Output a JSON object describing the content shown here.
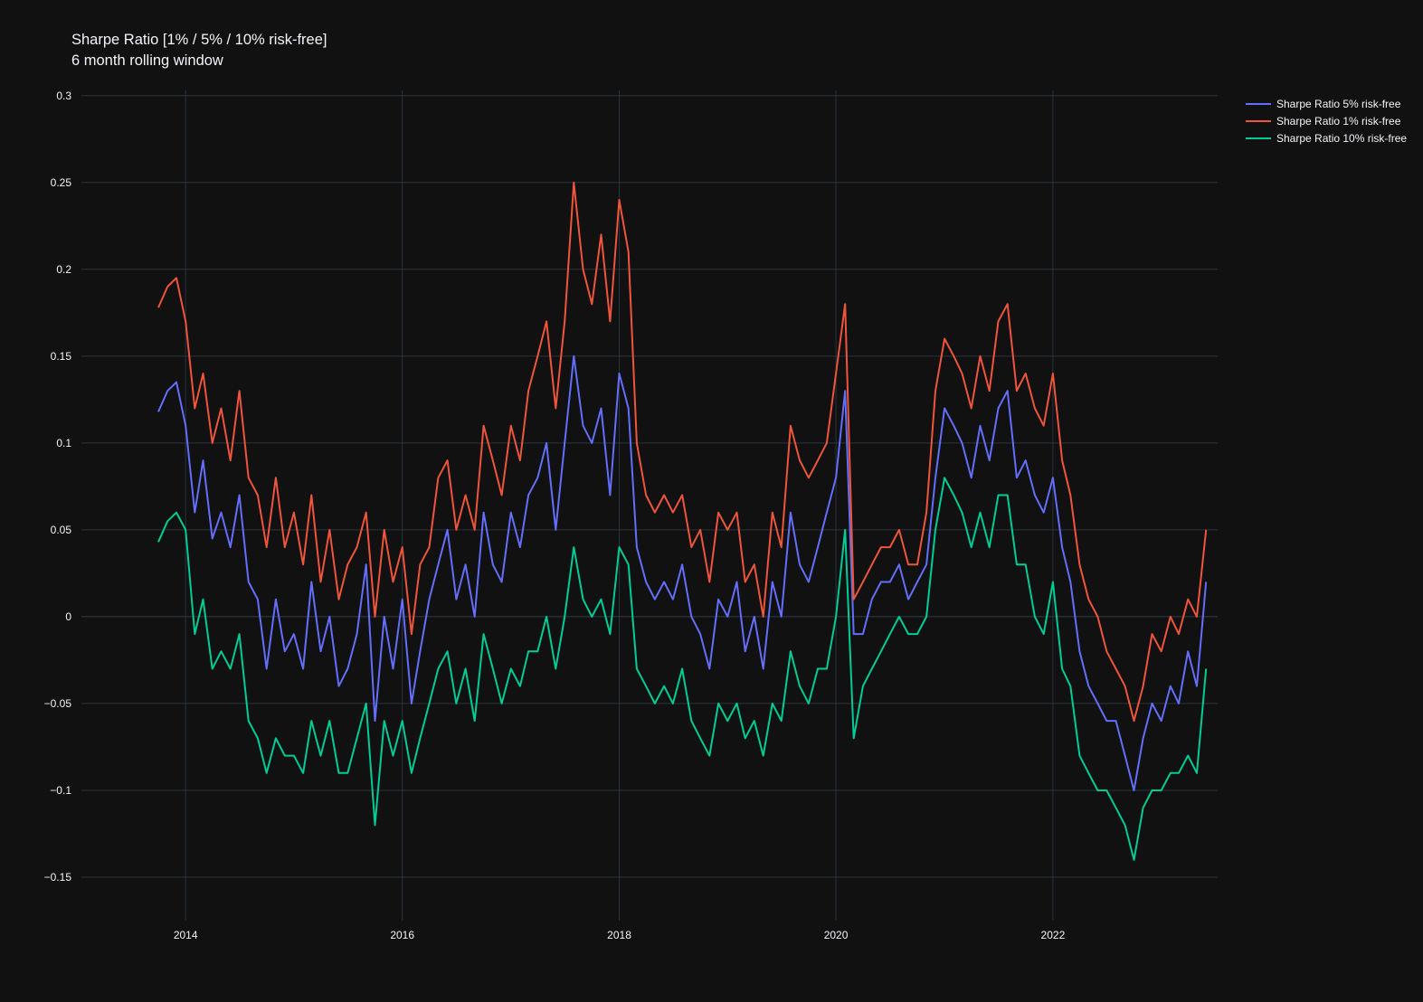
{
  "chart_data": {
    "type": "line",
    "title": "Sharpe Ratio [1% / 5% / 10% risk-free]",
    "subtitle": "6 month rolling window",
    "xlabel": "",
    "ylabel": "",
    "xlim": [
      "2013-01-15",
      "2023-07-10"
    ],
    "ylim": [
      -0.175,
      0.303
    ],
    "x_ticks": [
      "2014",
      "2016",
      "2018",
      "2020",
      "2022"
    ],
    "y_ticks": [
      "0.3",
      "0.25",
      "0.2",
      "0.15",
      "0.1",
      "0.05",
      "0",
      "−0.05",
      "−0.1",
      "−0.15"
    ],
    "grid": true,
    "legend_position": "top-right",
    "x": [
      "2013-10-01",
      "2013-11-01",
      "2013-12-01",
      "2014-01-01",
      "2014-02-01",
      "2014-03-01",
      "2014-04-01",
      "2014-05-01",
      "2014-06-01",
      "2014-07-01",
      "2014-08-01",
      "2014-09-01",
      "2014-10-01",
      "2014-11-01",
      "2014-12-01",
      "2015-01-01",
      "2015-02-01",
      "2015-03-01",
      "2015-04-01",
      "2015-05-01",
      "2015-06-01",
      "2015-07-01",
      "2015-08-01",
      "2015-09-01",
      "2015-10-01",
      "2015-11-01",
      "2015-12-01",
      "2016-01-01",
      "2016-02-01",
      "2016-03-01",
      "2016-04-01",
      "2016-05-01",
      "2016-06-01",
      "2016-07-01",
      "2016-08-01",
      "2016-09-01",
      "2016-10-01",
      "2016-11-01",
      "2016-12-01",
      "2017-01-01",
      "2017-02-01",
      "2017-03-01",
      "2017-04-01",
      "2017-05-01",
      "2017-06-01",
      "2017-07-01",
      "2017-08-01",
      "2017-09-01",
      "2017-10-01",
      "2017-11-01",
      "2017-12-01",
      "2018-01-01",
      "2018-02-01",
      "2018-03-01",
      "2018-04-01",
      "2018-05-01",
      "2018-06-01",
      "2018-07-01",
      "2018-08-01",
      "2018-09-01",
      "2018-10-01",
      "2018-11-01",
      "2018-12-01",
      "2019-01-01",
      "2019-02-01",
      "2019-03-01",
      "2019-04-01",
      "2019-05-01",
      "2019-06-01",
      "2019-07-01",
      "2019-08-01",
      "2019-09-01",
      "2019-10-01",
      "2019-11-01",
      "2019-12-01",
      "2020-01-01",
      "2020-02-01",
      "2020-03-01",
      "2020-04-01",
      "2020-05-01",
      "2020-06-01",
      "2020-07-01",
      "2020-08-01",
      "2020-09-01",
      "2020-10-01",
      "2020-11-01",
      "2020-12-01",
      "2021-01-01",
      "2021-02-01",
      "2021-03-01",
      "2021-04-01",
      "2021-05-01",
      "2021-06-01",
      "2021-07-01",
      "2021-08-01",
      "2021-09-01",
      "2021-10-01",
      "2021-11-01",
      "2021-12-01",
      "2022-01-01",
      "2022-02-01",
      "2022-03-01",
      "2022-04-01",
      "2022-05-01",
      "2022-06-01",
      "2022-07-01",
      "2022-08-01",
      "2022-09-01",
      "2022-10-01",
      "2022-11-01",
      "2022-12-01",
      "2023-01-01",
      "2023-02-01",
      "2023-03-01",
      "2023-04-01",
      "2023-05-01",
      "2023-06-01"
    ],
    "series": [
      {
        "name": "Sharpe Ratio 5% risk-free",
        "color": "#636efa",
        "values": [
          0.118,
          0.13,
          0.135,
          0.11,
          0.06,
          0.09,
          0.045,
          0.06,
          0.04,
          0.07,
          0.02,
          0.01,
          -0.03,
          0.01,
          -0.02,
          -0.01,
          -0.03,
          0.02,
          -0.02,
          0.0,
          -0.04,
          -0.03,
          -0.01,
          0.03,
          -0.06,
          0.0,
          -0.03,
          0.01,
          -0.05,
          -0.02,
          0.01,
          0.03,
          0.05,
          0.01,
          0.03,
          0.0,
          0.06,
          0.03,
          0.02,
          0.06,
          0.04,
          0.07,
          0.08,
          0.1,
          0.05,
          0.1,
          0.15,
          0.11,
          0.1,
          0.12,
          0.07,
          0.14,
          0.12,
          0.04,
          0.02,
          0.01,
          0.02,
          0.01,
          0.03,
          0.0,
          -0.01,
          -0.03,
          0.01,
          0.0,
          0.02,
          -0.02,
          0.0,
          -0.03,
          0.02,
          0.0,
          0.06,
          0.03,
          0.02,
          0.04,
          0.06,
          0.08,
          0.13,
          -0.01,
          -0.01,
          0.01,
          0.02,
          0.02,
          0.03,
          0.01,
          0.02,
          0.03,
          0.08,
          0.12,
          0.11,
          0.1,
          0.08,
          0.11,
          0.09,
          0.12,
          0.13,
          0.08,
          0.09,
          0.07,
          0.06,
          0.08,
          0.04,
          0.02,
          -0.02,
          -0.04,
          -0.05,
          -0.06,
          -0.06,
          -0.08,
          -0.1,
          -0.07,
          -0.05,
          -0.06,
          -0.04,
          -0.05,
          -0.02,
          -0.04,
          0.02
        ]
      },
      {
        "name": "Sharpe Ratio 1% risk-free",
        "color": "#ef553b",
        "values": [
          0.178,
          0.19,
          0.195,
          0.17,
          0.12,
          0.14,
          0.1,
          0.12,
          0.09,
          0.13,
          0.08,
          0.07,
          0.04,
          0.08,
          0.04,
          0.06,
          0.03,
          0.07,
          0.02,
          0.05,
          0.01,
          0.03,
          0.04,
          0.06,
          0.0,
          0.05,
          0.02,
          0.04,
          -0.01,
          0.03,
          0.04,
          0.08,
          0.09,
          0.05,
          0.07,
          0.05,
          0.11,
          0.09,
          0.07,
          0.11,
          0.09,
          0.13,
          0.15,
          0.17,
          0.12,
          0.17,
          0.25,
          0.2,
          0.18,
          0.22,
          0.17,
          0.24,
          0.21,
          0.1,
          0.07,
          0.06,
          0.07,
          0.06,
          0.07,
          0.04,
          0.05,
          0.02,
          0.06,
          0.05,
          0.06,
          0.02,
          0.03,
          0.0,
          0.06,
          0.04,
          0.11,
          0.09,
          0.08,
          0.09,
          0.1,
          0.14,
          0.18,
          0.01,
          0.02,
          0.03,
          0.04,
          0.04,
          0.05,
          0.03,
          0.03,
          0.06,
          0.13,
          0.16,
          0.15,
          0.14,
          0.12,
          0.15,
          0.13,
          0.17,
          0.18,
          0.13,
          0.14,
          0.12,
          0.11,
          0.14,
          0.09,
          0.07,
          0.03,
          0.01,
          0.0,
          -0.02,
          -0.03,
          -0.04,
          -0.06,
          -0.04,
          -0.01,
          -0.02,
          0.0,
          -0.01,
          0.01,
          0.0,
          0.05
        ]
      },
      {
        "name": "Sharpe Ratio 10% risk-free",
        "color": "#00cc96",
        "values": [
          0.043,
          0.055,
          0.06,
          0.05,
          -0.01,
          0.01,
          -0.03,
          -0.02,
          -0.03,
          -0.01,
          -0.06,
          -0.07,
          -0.09,
          -0.07,
          -0.08,
          -0.08,
          -0.09,
          -0.06,
          -0.08,
          -0.06,
          -0.09,
          -0.09,
          -0.07,
          -0.05,
          -0.12,
          -0.06,
          -0.08,
          -0.06,
          -0.09,
          -0.07,
          -0.05,
          -0.03,
          -0.02,
          -0.05,
          -0.03,
          -0.06,
          -0.01,
          -0.03,
          -0.05,
          -0.03,
          -0.04,
          -0.02,
          -0.02,
          0.0,
          -0.03,
          0.0,
          0.04,
          0.01,
          0.0,
          0.01,
          -0.01,
          0.04,
          0.03,
          -0.03,
          -0.04,
          -0.05,
          -0.04,
          -0.05,
          -0.03,
          -0.06,
          -0.07,
          -0.08,
          -0.05,
          -0.06,
          -0.05,
          -0.07,
          -0.06,
          -0.08,
          -0.05,
          -0.06,
          -0.02,
          -0.04,
          -0.05,
          -0.03,
          -0.03,
          0.0,
          0.05,
          -0.07,
          -0.04,
          -0.03,
          -0.02,
          -0.01,
          0.0,
          -0.01,
          -0.01,
          0.0,
          0.05,
          0.08,
          0.07,
          0.06,
          0.04,
          0.06,
          0.04,
          0.07,
          0.07,
          0.03,
          0.03,
          0.0,
          -0.01,
          0.02,
          -0.03,
          -0.04,
          -0.08,
          -0.09,
          -0.1,
          -0.1,
          -0.11,
          -0.12,
          -0.14,
          -0.11,
          -0.1,
          -0.1,
          -0.09,
          -0.09,
          -0.08,
          -0.09,
          -0.03
        ]
      }
    ]
  }
}
